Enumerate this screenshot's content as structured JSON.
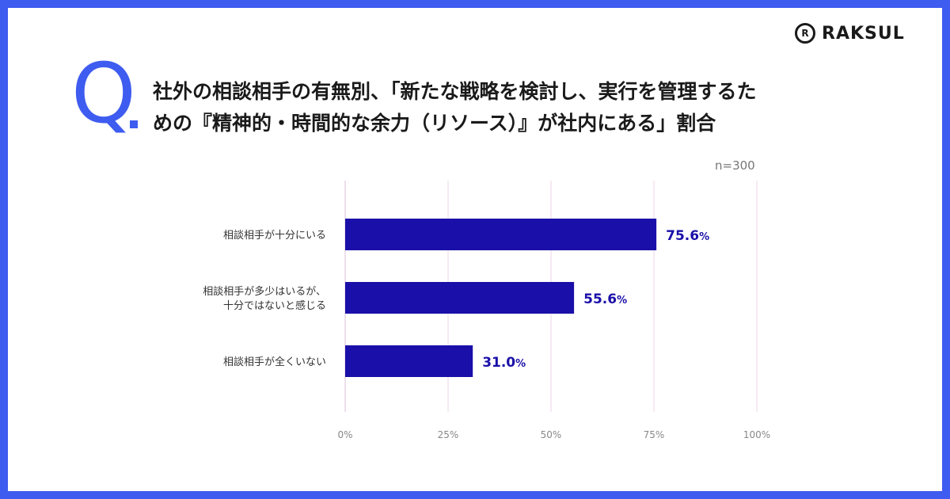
{
  "brand": {
    "logo_text": "RAKSUL",
    "logo_mark": "R"
  },
  "question": {
    "q_letter": "Q",
    "line1": "社外の相談相手の有無別、「新たな戦略を検討し、実行を管理するた",
    "line2": "めの『精神的・時間的な余力（リソース）』が社内にある」割合"
  },
  "n_label": "n=300",
  "colors": {
    "frame": "#3f5cf0",
    "bar": "#1a0fa8",
    "grid": "#f3e3f0",
    "value_text": "#1a0fa8"
  },
  "chart_data": {
    "type": "bar",
    "orientation": "horizontal",
    "categories": [
      [
        "相談相手が十分にいる"
      ],
      [
        "相談相手が多少はいるが、",
        "十分ではないと感じる"
      ],
      [
        "相談相手が全くいない"
      ]
    ],
    "values": [
      75.6,
      55.6,
      31.0
    ],
    "value_labels": [
      "75.6",
      "55.6",
      "31.0"
    ],
    "value_unit": "%",
    "xlim": [
      0,
      100
    ],
    "xticks": [
      0,
      25,
      50,
      75,
      100
    ],
    "xtick_labels": [
      "0%",
      "25%",
      "50%",
      "75%",
      "100%"
    ],
    "grid": true
  }
}
